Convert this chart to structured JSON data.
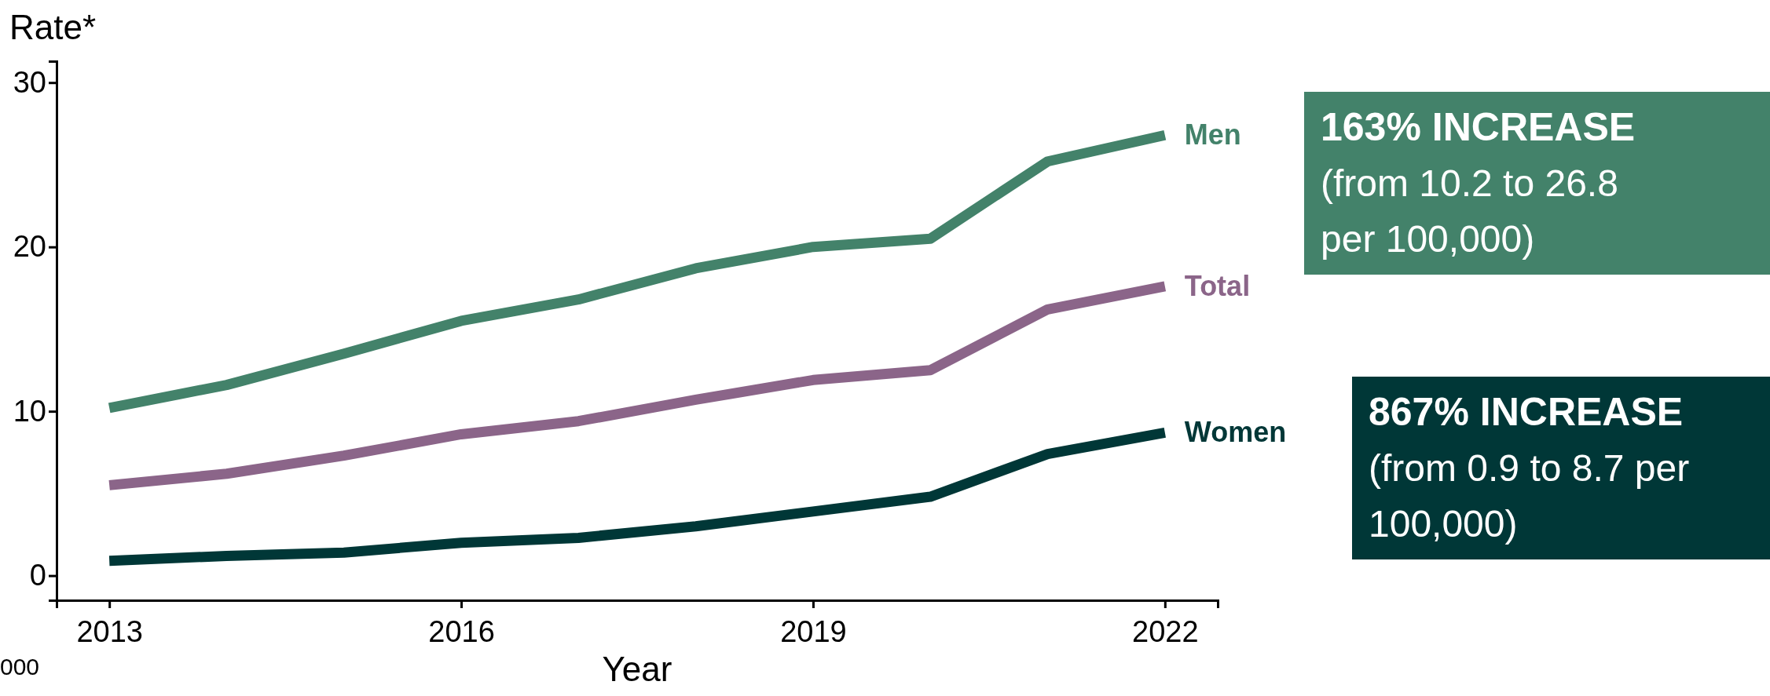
{
  "chart_data": {
    "type": "line",
    "xlabel": "Year",
    "ylabel": "Rate*",
    "x": [
      2013,
      2014,
      2015,
      2016,
      2017,
      2018,
      2019,
      2020,
      2021,
      2022
    ],
    "xlim": [
      2012.55,
      2022.45
    ],
    "xticks": [
      2013,
      2016,
      2019,
      2022
    ],
    "ylim": [
      -1.5,
      31.3
    ],
    "yticks": [
      0,
      10,
      20,
      30
    ],
    "grid": false,
    "legend": false,
    "marker": "none",
    "line_style": "solid",
    "series": [
      {
        "name": "Men",
        "color": "#43826a",
        "values": [
          10.2,
          11.6,
          13.5,
          15.5,
          16.8,
          18.7,
          20.0,
          20.5,
          25.2,
          26.8
        ]
      },
      {
        "name": "Women",
        "color": "#003737",
        "values": [
          0.9,
          1.2,
          1.4,
          2.0,
          2.3,
          3.0,
          3.9,
          4.8,
          7.4,
          8.7
        ]
      },
      {
        "name": "Total",
        "color": "#8b6589",
        "values": [
          5.5,
          6.2,
          7.3,
          8.6,
          9.4,
          10.7,
          11.9,
          12.5,
          16.2,
          17.6
        ]
      }
    ],
    "annotations": [
      "163% INCREASE\n(from 10.2  to 26.8\nper 100,000)",
      "867% INCREASE\n(from 0.9 to 8.7 per\n100,000)",
      "000"
    ]
  }
}
